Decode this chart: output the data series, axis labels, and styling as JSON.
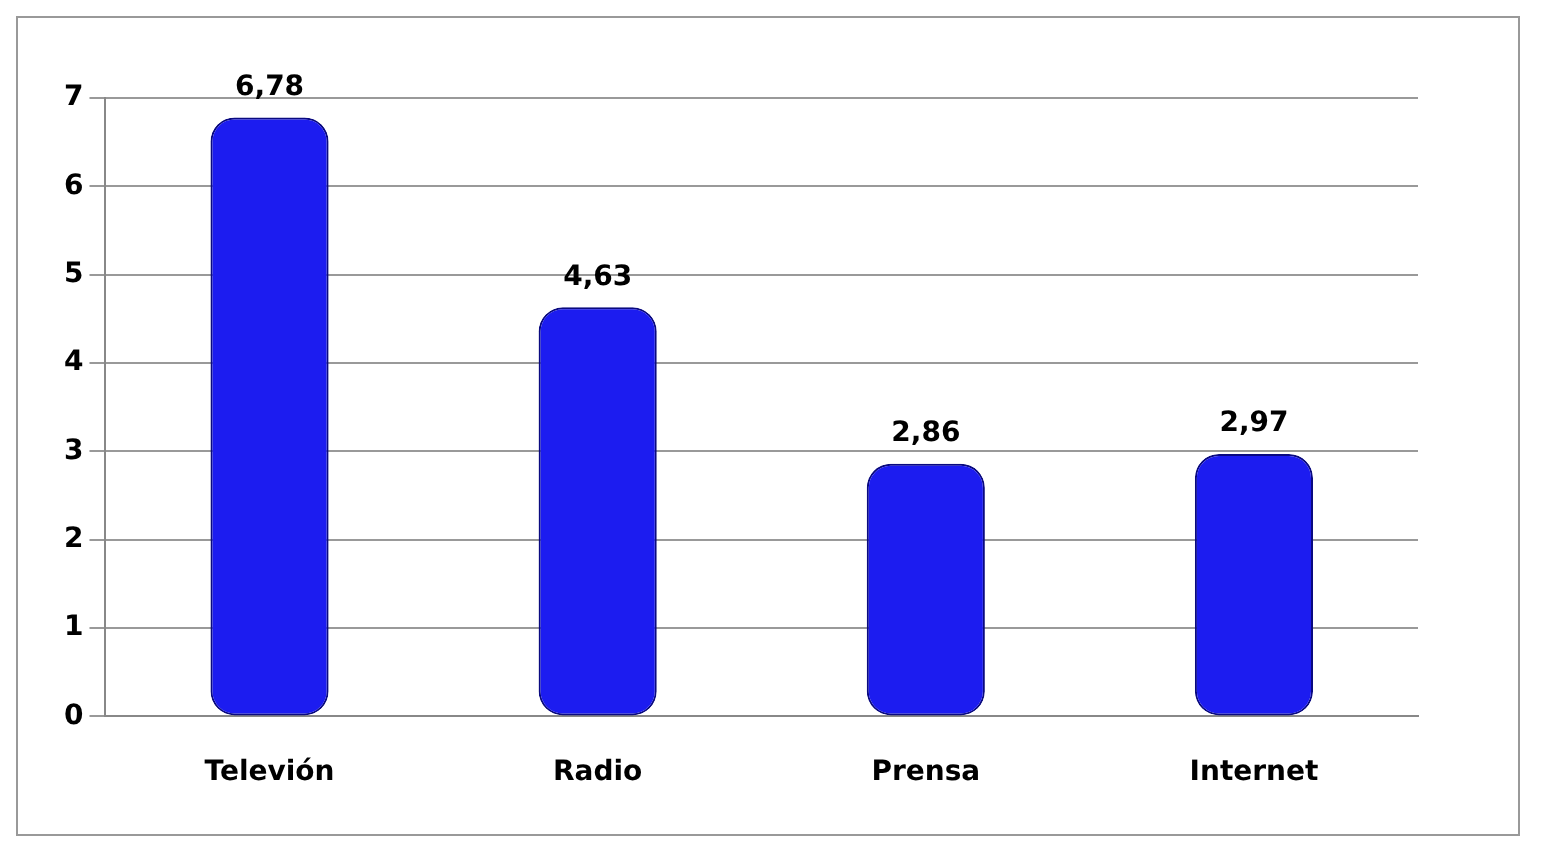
{
  "chart_data": {
    "type": "bar",
    "categories": [
      "Televión",
      "Radio",
      "Prensa",
      "Internet"
    ],
    "values": [
      6.78,
      4.63,
      2.86,
      2.97
    ],
    "value_labels": [
      "6,78",
      "4,63",
      "2,86",
      "2,97"
    ],
    "color": "#1c1cf0",
    "ylim": [
      0,
      7
    ],
    "yticks": [
      0,
      1,
      2,
      3,
      4,
      5,
      6,
      7
    ],
    "grid": "y",
    "legend": false
  }
}
